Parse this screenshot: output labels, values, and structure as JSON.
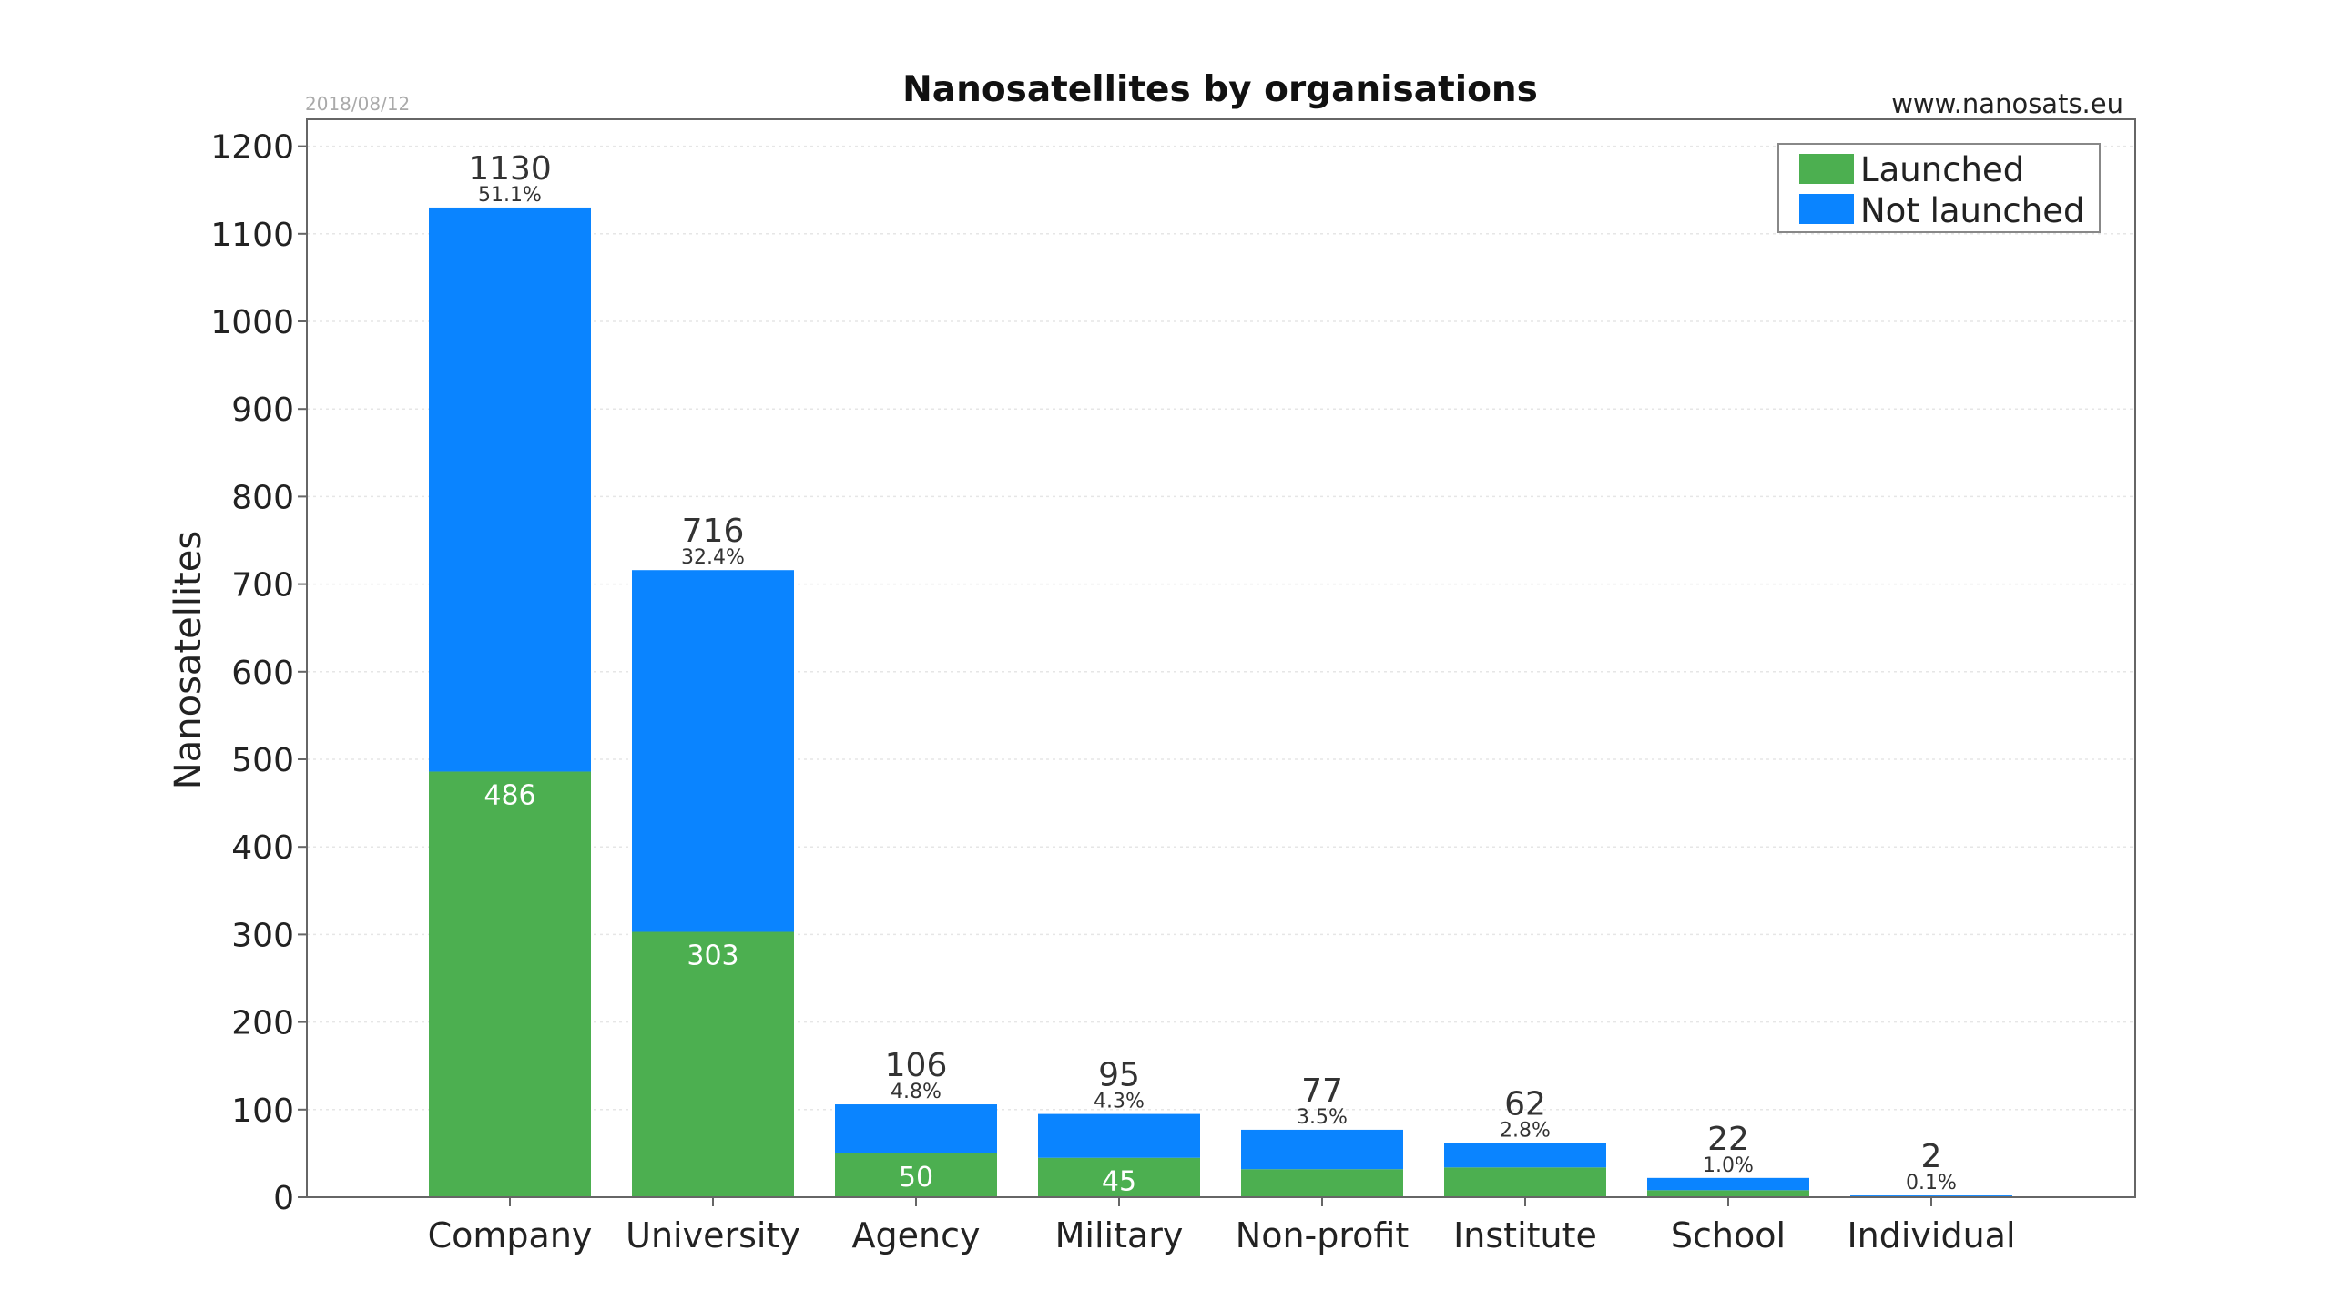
{
  "colors": {
    "launched": "#4caf50",
    "not_launched": "#0a84ff",
    "grid": "#e6e6e6",
    "axis": "#666666"
  },
  "chart_data": {
    "type": "bar",
    "stacked": true,
    "title": "Nanosatellites by organisations",
    "date": "2018/08/12",
    "source": "www.nanosats.eu",
    "xlabel": "",
    "ylabel": "Nanosatellites",
    "ylim": [
      0,
      1230
    ],
    "yticks": [
      0,
      100,
      200,
      300,
      400,
      500,
      600,
      700,
      800,
      900,
      1000,
      1100,
      1200
    ],
    "grid": true,
    "legend_position": "top-right",
    "categories": [
      "Company",
      "University",
      "Agency",
      "Military",
      "Non-profit",
      "Institute",
      "School",
      "Individual"
    ],
    "series": [
      {
        "name": "Launched",
        "values": [
          486,
          303,
          50,
          45,
          32,
          34,
          8,
          0
        ]
      },
      {
        "name": "Not launched",
        "values": [
          644,
          413,
          56,
          50,
          45,
          28,
          14,
          2
        ]
      }
    ],
    "totals": [
      "1130",
      "716",
      "106",
      "95",
      "77",
      "62",
      "22",
      "2"
    ],
    "percentages": [
      "51.1%",
      "32.4%",
      "4.8%",
      "4.3%",
      "3.5%",
      "2.8%",
      "1.0%",
      "0.1%"
    ],
    "launched_labels": [
      "486",
      "303",
      "50",
      "45",
      "",
      "",
      "",
      ""
    ]
  }
}
